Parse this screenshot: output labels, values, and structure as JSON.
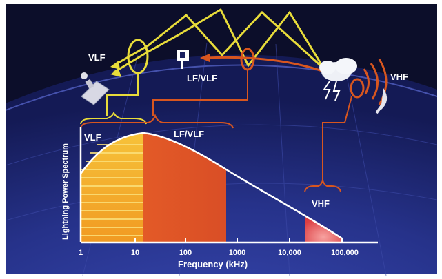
{
  "labels": {
    "vlf_top": "VLF",
    "lf_vlf_top": "LF/VLF",
    "vhf_top": "VHF",
    "vlf_band": "VLF",
    "lf_vlf_band": "LF/VLF",
    "vhf_band": "VHF",
    "y_axis": "Lightning Power Spectrum",
    "x_axis": "Frequency (kHz)"
  },
  "ticks": [
    "1",
    "10",
    "100",
    "1000",
    "10,000",
    "100,000"
  ],
  "colors": {
    "space": "#0c0e2a",
    "atmosphere": "#2a3796",
    "vlf_band": "#f5b52a",
    "lf_band": "#e2622a",
    "vhf_band": "#e8504a",
    "ray": "#e8dc3a",
    "signal": "#d8561f",
    "curve": "#ffffff"
  },
  "icons": [
    "satellite-icon",
    "lightning-storm-icon",
    "antenna-icon",
    "receiver-loop-icon"
  ]
}
